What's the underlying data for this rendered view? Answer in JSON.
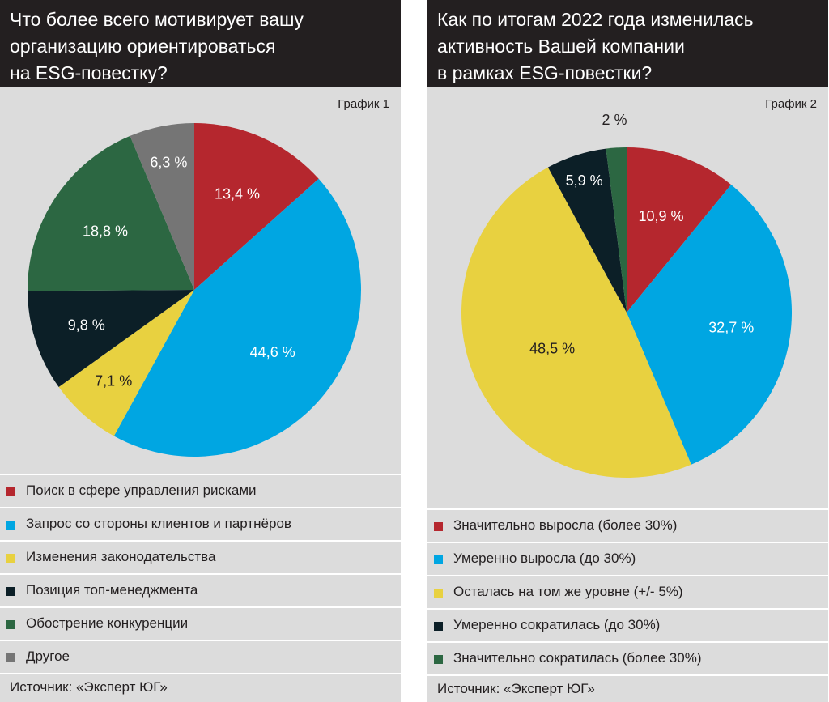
{
  "colors": {
    "red": "#b5272e",
    "blue": "#00a6e2",
    "yellow": "#e8d140",
    "black": "#0c1f27",
    "green": "#2c6742",
    "gray": "#757575"
  },
  "chart_data": [
    {
      "type": "pie",
      "title": "Что более всего мотивирует вашу организацию ориентироваться на ESG-повестку?",
      "title_lines": [
        "Что более всего мотивирует вашу",
        "организацию ориентироваться",
        "на ESG-повестку?"
      ],
      "chart_label": "График 1",
      "slices": [
        {
          "label": "Поиск в сфере управления рисками",
          "value": 13.4,
          "value_label": "13,4 %",
          "color": "#b5272e"
        },
        {
          "label": "Запрос со стороны клиентов и партнёров",
          "value": 44.6,
          "value_label": "44,6 %",
          "color": "#00a6e2"
        },
        {
          "label": "Изменения законодательства",
          "value": 7.1,
          "value_label": "7,1 %",
          "color": "#e8d140"
        },
        {
          "label": "Позиция топ-менеджмента",
          "value": 9.8,
          "value_label": "9,8 %",
          "color": "#0c1f27"
        },
        {
          "label": "Обострение конкуренции",
          "value": 18.8,
          "value_label": "18,8 %",
          "color": "#2c6742"
        },
        {
          "label": "Другое",
          "value": 6.3,
          "value_label": "6,3 %",
          "color": "#757575"
        }
      ],
      "source": "Источник: «Эксперт ЮГ»"
    },
    {
      "type": "pie",
      "title": "Как по итогам 2022 года изменилась активность Вашей компании в рамках ESG-повестки?",
      "title_lines": [
        "Как по итогам 2022 года изменилась",
        "активность Вашей компании",
        "в рамках ESG-повестки?"
      ],
      "chart_label": "График 2",
      "slices": [
        {
          "label": "Значительно выросла (более 30%)",
          "value": 10.9,
          "value_label": "10,9 %",
          "color": "#b5272e"
        },
        {
          "label": "Умеренно выросла (до 30%)",
          "value": 32.7,
          "value_label": "32,7 %",
          "color": "#00a6e2"
        },
        {
          "label": "Осталась на том же уровне (+/- 5%)",
          "value": 48.5,
          "value_label": "48,5 %",
          "color": "#e8d140"
        },
        {
          "label": "Умеренно сократилась (до 30%)",
          "value": 5.9,
          "value_label": "5,9 %",
          "color": "#0c1f27"
        },
        {
          "label": "Значительно сократилась (более 30%)",
          "value": 2.0,
          "value_label": "2 %",
          "color": "#2c6742"
        }
      ],
      "source": "Источник: «Эксперт ЮГ»"
    }
  ]
}
